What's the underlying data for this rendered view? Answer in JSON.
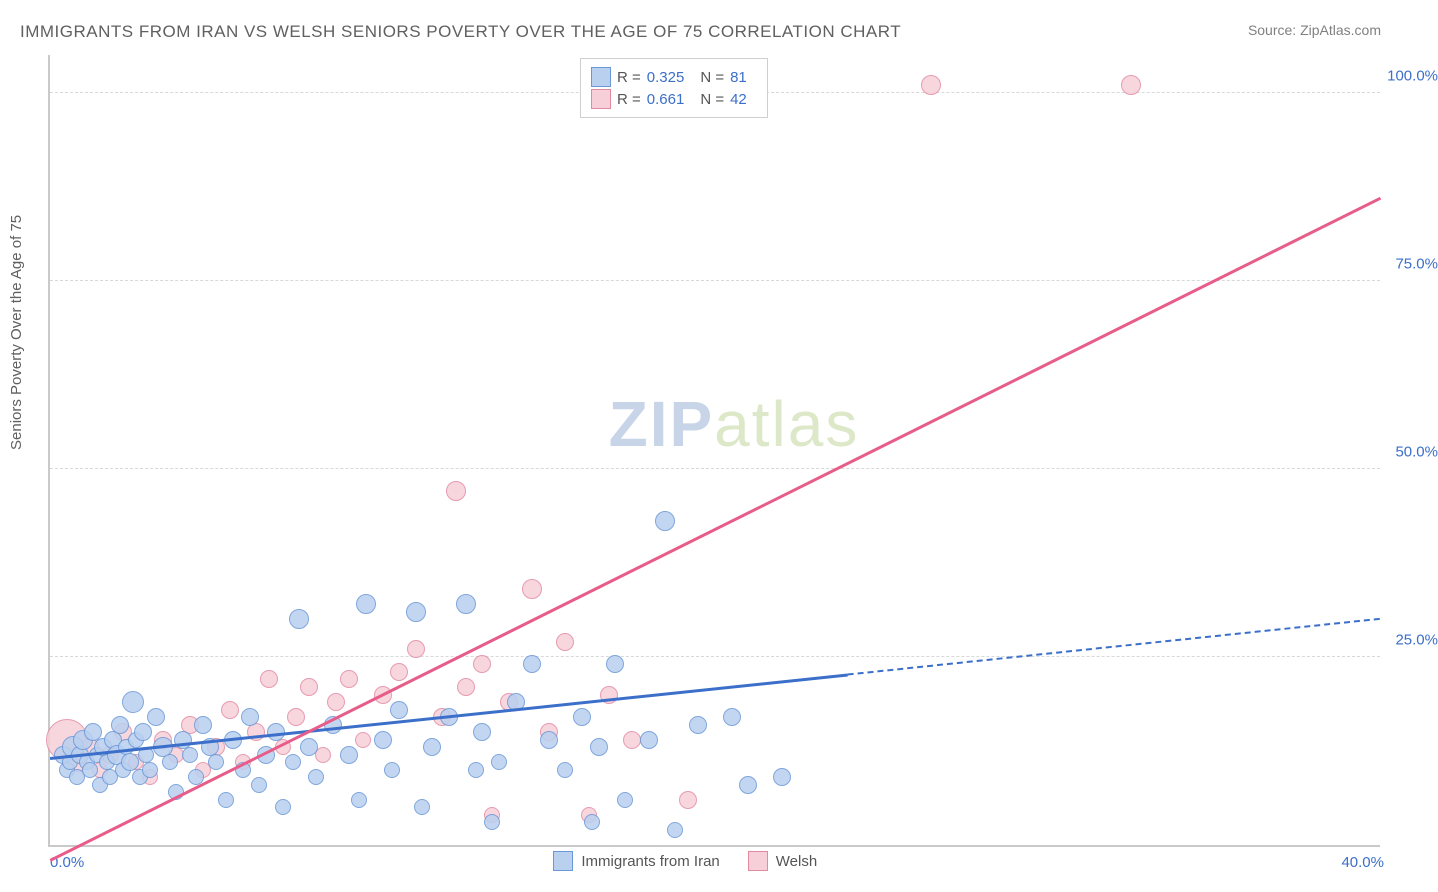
{
  "title": "IMMIGRANTS FROM IRAN VS WELSH SENIORS POVERTY OVER THE AGE OF 75 CORRELATION CHART",
  "source_label": "Source:",
  "source_value": "ZipAtlas.com",
  "ylabel": "Seniors Poverty Over the Age of 75",
  "chart": {
    "type": "scatter",
    "xlim": [
      0,
      40
    ],
    "ylim": [
      0,
      105
    ],
    "yticks": [
      {
        "v": 25,
        "label": "25.0%"
      },
      {
        "v": 50,
        "label": "50.0%"
      },
      {
        "v": 75,
        "label": "75.0%"
      },
      {
        "v": 100,
        "label": "100.0%"
      }
    ],
    "xticks": [
      {
        "v": 0,
        "label": "0.0%",
        "pos": "left"
      },
      {
        "v": 40,
        "label": "40.0%",
        "pos": "right"
      }
    ],
    "background_color": "#ffffff",
    "grid_color": "#d8d8d8",
    "axis_color": "#c9c9c9",
    "tick_label_color": "#3b6fc9",
    "series": [
      {
        "name": "Immigrants from Iran",
        "fill": "#b9d0ef",
        "stroke": "#6a97d6",
        "R": "0.325",
        "N": "81",
        "trend": {
          "x1": 0,
          "y1": 11.5,
          "x2": 40,
          "y2": 30,
          "solid_until_x": 24,
          "color": "#3b6fc9"
        },
        "points": [
          {
            "x": 0.4,
            "y": 12,
            "r": 8
          },
          {
            "x": 0.5,
            "y": 10,
            "r": 7
          },
          {
            "x": 0.6,
            "y": 11,
            "r": 7
          },
          {
            "x": 0.7,
            "y": 13,
            "r": 10
          },
          {
            "x": 0.8,
            "y": 9,
            "r": 7
          },
          {
            "x": 0.9,
            "y": 12,
            "r": 8
          },
          {
            "x": 1.0,
            "y": 14,
            "r": 9
          },
          {
            "x": 1.1,
            "y": 11,
            "r": 7
          },
          {
            "x": 1.2,
            "y": 10,
            "r": 7
          },
          {
            "x": 1.3,
            "y": 15,
            "r": 8
          },
          {
            "x": 1.4,
            "y": 12,
            "r": 7
          },
          {
            "x": 1.5,
            "y": 8,
            "r": 7
          },
          {
            "x": 1.6,
            "y": 13,
            "r": 8
          },
          {
            "x": 1.7,
            "y": 11,
            "r": 7
          },
          {
            "x": 1.8,
            "y": 9,
            "r": 7
          },
          {
            "x": 1.9,
            "y": 14,
            "r": 8
          },
          {
            "x": 2.0,
            "y": 12,
            "r": 9
          },
          {
            "x": 2.1,
            "y": 16,
            "r": 8
          },
          {
            "x": 2.2,
            "y": 10,
            "r": 7
          },
          {
            "x": 2.3,
            "y": 13,
            "r": 7
          },
          {
            "x": 2.4,
            "y": 11,
            "r": 8
          },
          {
            "x": 2.5,
            "y": 19,
            "r": 10
          },
          {
            "x": 2.6,
            "y": 14,
            "r": 7
          },
          {
            "x": 2.7,
            "y": 9,
            "r": 7
          },
          {
            "x": 2.8,
            "y": 15,
            "r": 8
          },
          {
            "x": 2.9,
            "y": 12,
            "r": 7
          },
          {
            "x": 3.0,
            "y": 10,
            "r": 7
          },
          {
            "x": 3.2,
            "y": 17,
            "r": 8
          },
          {
            "x": 3.4,
            "y": 13,
            "r": 9
          },
          {
            "x": 3.6,
            "y": 11,
            "r": 7
          },
          {
            "x": 3.8,
            "y": 7,
            "r": 7
          },
          {
            "x": 4.0,
            "y": 14,
            "r": 8
          },
          {
            "x": 4.2,
            "y": 12,
            "r": 7
          },
          {
            "x": 4.4,
            "y": 9,
            "r": 7
          },
          {
            "x": 4.6,
            "y": 16,
            "r": 8
          },
          {
            "x": 4.8,
            "y": 13,
            "r": 8
          },
          {
            "x": 5.0,
            "y": 11,
            "r": 7
          },
          {
            "x": 5.3,
            "y": 6,
            "r": 7
          },
          {
            "x": 5.5,
            "y": 14,
            "r": 8
          },
          {
            "x": 5.8,
            "y": 10,
            "r": 7
          },
          {
            "x": 6.0,
            "y": 17,
            "r": 8
          },
          {
            "x": 6.3,
            "y": 8,
            "r": 7
          },
          {
            "x": 6.5,
            "y": 12,
            "r": 8
          },
          {
            "x": 6.8,
            "y": 15,
            "r": 8
          },
          {
            "x": 7.0,
            "y": 5,
            "r": 7
          },
          {
            "x": 7.3,
            "y": 11,
            "r": 7
          },
          {
            "x": 7.5,
            "y": 30,
            "r": 9
          },
          {
            "x": 7.8,
            "y": 13,
            "r": 8
          },
          {
            "x": 8.0,
            "y": 9,
            "r": 7
          },
          {
            "x": 8.5,
            "y": 16,
            "r": 8
          },
          {
            "x": 9.0,
            "y": 12,
            "r": 8
          },
          {
            "x": 9.3,
            "y": 6,
            "r": 7
          },
          {
            "x": 9.5,
            "y": 32,
            "r": 9
          },
          {
            "x": 10.0,
            "y": 14,
            "r": 8
          },
          {
            "x": 10.3,
            "y": 10,
            "r": 7
          },
          {
            "x": 10.5,
            "y": 18,
            "r": 8
          },
          {
            "x": 11.0,
            "y": 31,
            "r": 9
          },
          {
            "x": 11.2,
            "y": 5,
            "r": 7
          },
          {
            "x": 11.5,
            "y": 13,
            "r": 8
          },
          {
            "x": 12.0,
            "y": 17,
            "r": 8
          },
          {
            "x": 12.5,
            "y": 32,
            "r": 9
          },
          {
            "x": 12.8,
            "y": 10,
            "r": 7
          },
          {
            "x": 13.0,
            "y": 15,
            "r": 8
          },
          {
            "x": 13.3,
            "y": 3,
            "r": 7
          },
          {
            "x": 13.5,
            "y": 11,
            "r": 7
          },
          {
            "x": 14.0,
            "y": 19,
            "r": 8
          },
          {
            "x": 14.5,
            "y": 24,
            "r": 8
          },
          {
            "x": 15.0,
            "y": 14,
            "r": 8
          },
          {
            "x": 15.5,
            "y": 10,
            "r": 7
          },
          {
            "x": 16.0,
            "y": 17,
            "r": 8
          },
          {
            "x": 16.3,
            "y": 3,
            "r": 7
          },
          {
            "x": 16.5,
            "y": 13,
            "r": 8
          },
          {
            "x": 17.0,
            "y": 24,
            "r": 8
          },
          {
            "x": 17.3,
            "y": 6,
            "r": 7
          },
          {
            "x": 18.0,
            "y": 14,
            "r": 8
          },
          {
            "x": 18.5,
            "y": 43,
            "r": 9
          },
          {
            "x": 18.8,
            "y": 2,
            "r": 7
          },
          {
            "x": 19.5,
            "y": 16,
            "r": 8
          },
          {
            "x": 20.5,
            "y": 17,
            "r": 8
          },
          {
            "x": 21.0,
            "y": 8,
            "r": 8
          },
          {
            "x": 22.0,
            "y": 9,
            "r": 8
          }
        ]
      },
      {
        "name": "Welsh",
        "fill": "#f6cfd9",
        "stroke": "#e38aa3",
        "R": "0.661",
        "N": "42",
        "trend": {
          "x1": 0,
          "y1": -2,
          "x2": 40,
          "y2": 86,
          "solid_until_x": 40,
          "color": "#e85c8a"
        },
        "points": [
          {
            "x": 0.5,
            "y": 14,
            "r": 20
          },
          {
            "x": 0.8,
            "y": 11,
            "r": 9
          },
          {
            "x": 1.2,
            "y": 13,
            "r": 8
          },
          {
            "x": 1.5,
            "y": 10,
            "r": 7
          },
          {
            "x": 1.8,
            "y": 12,
            "r": 8
          },
          {
            "x": 2.2,
            "y": 15,
            "r": 8
          },
          {
            "x": 2.6,
            "y": 11,
            "r": 7
          },
          {
            "x": 3.0,
            "y": 9,
            "r": 7
          },
          {
            "x": 3.4,
            "y": 14,
            "r": 8
          },
          {
            "x": 3.8,
            "y": 12,
            "r": 7
          },
          {
            "x": 4.2,
            "y": 16,
            "r": 8
          },
          {
            "x": 4.6,
            "y": 10,
            "r": 7
          },
          {
            "x": 5.0,
            "y": 13,
            "r": 8
          },
          {
            "x": 5.4,
            "y": 18,
            "r": 8
          },
          {
            "x": 5.8,
            "y": 11,
            "r": 7
          },
          {
            "x": 6.2,
            "y": 15,
            "r": 8
          },
          {
            "x": 6.6,
            "y": 22,
            "r": 8
          },
          {
            "x": 7.0,
            "y": 13,
            "r": 7
          },
          {
            "x": 7.4,
            "y": 17,
            "r": 8
          },
          {
            "x": 7.8,
            "y": 21,
            "r": 8
          },
          {
            "x": 8.2,
            "y": 12,
            "r": 7
          },
          {
            "x": 8.6,
            "y": 19,
            "r": 8
          },
          {
            "x": 9.0,
            "y": 22,
            "r": 8
          },
          {
            "x": 9.4,
            "y": 14,
            "r": 7
          },
          {
            "x": 10.0,
            "y": 20,
            "r": 8
          },
          {
            "x": 10.5,
            "y": 23,
            "r": 8
          },
          {
            "x": 11.0,
            "y": 26,
            "r": 8
          },
          {
            "x": 11.8,
            "y": 17,
            "r": 8
          },
          {
            "x": 12.2,
            "y": 47,
            "r": 9
          },
          {
            "x": 12.5,
            "y": 21,
            "r": 8
          },
          {
            "x": 13.0,
            "y": 24,
            "r": 8
          },
          {
            "x": 13.3,
            "y": 4,
            "r": 7
          },
          {
            "x": 13.8,
            "y": 19,
            "r": 8
          },
          {
            "x": 14.5,
            "y": 34,
            "r": 9
          },
          {
            "x": 15.0,
            "y": 15,
            "r": 8
          },
          {
            "x": 15.5,
            "y": 27,
            "r": 8
          },
          {
            "x": 16.2,
            "y": 4,
            "r": 7
          },
          {
            "x": 16.8,
            "y": 20,
            "r": 8
          },
          {
            "x": 17.5,
            "y": 14,
            "r": 8
          },
          {
            "x": 19.2,
            "y": 6,
            "r": 8
          },
          {
            "x": 26.5,
            "y": 101,
            "r": 9
          },
          {
            "x": 32.5,
            "y": 101,
            "r": 9
          }
        ]
      }
    ]
  },
  "legend_top": {
    "R_label": "R =",
    "N_label": "N ="
  },
  "legend_bottom": [
    {
      "label": "Immigrants from Iran",
      "fill": "#b9d0ef",
      "stroke": "#6a97d6"
    },
    {
      "label": "Welsh",
      "fill": "#f6cfd9",
      "stroke": "#e38aa3"
    }
  ],
  "watermark": {
    "text_bold": "ZIP",
    "text_light": "atlas",
    "color_bold": "#c8d5e8",
    "color_light": "#dde8c8"
  }
}
